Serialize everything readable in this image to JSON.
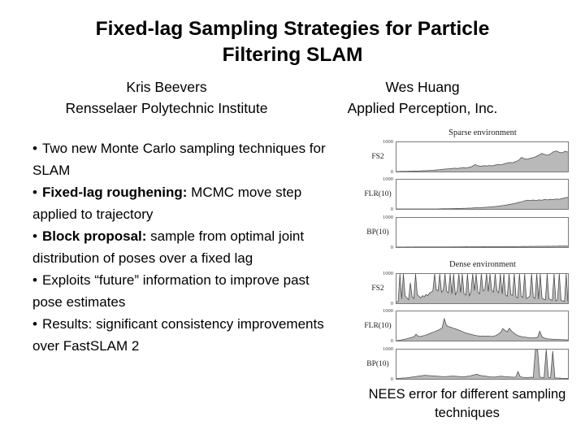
{
  "title": {
    "line1": "Fixed-lag Sampling Strategies for Particle",
    "line2": "Filtering SLAM"
  },
  "authors": [
    {
      "name": "Kris Beevers",
      "affiliation": "Rensselaer Polytechnic Institute"
    },
    {
      "name": "Wes Huang",
      "affiliation": "Applied Perception, Inc."
    }
  ],
  "bullets": [
    {
      "marker": "•",
      "bold": "",
      "text": "Two new Monte Carlo sampling techniques for SLAM"
    },
    {
      "marker": "•",
      "bold": "Fixed-lag roughening:",
      "text": " MCMC move step applied to trajectory"
    },
    {
      "marker": "•",
      "bold": "Block proposal:",
      "text": " sample from optimal joint distribution of poses over a fixed lag"
    },
    {
      "marker": "•",
      "bold": "",
      "text": "Exploits “future” information to improve past pose estimates"
    },
    {
      "marker": "•",
      "bold": "",
      "text": "Results: significant consistency improvements over FastSLAM 2"
    }
  ],
  "caption": "NEES error for different sampling techniques",
  "chart_data": {
    "type": "area",
    "title": "NEES error for different sampling techniques",
    "xlabel": "",
    "ylabel": "",
    "ylim": [
      0,
      1000
    ],
    "yticks": [
      "1000",
      "0"
    ],
    "grid": false,
    "legend": "none",
    "fill_color": "#b9b9b9",
    "line_color": "#4d4d4d",
    "frame_color": "#7a7a7a",
    "groups": [
      {
        "title": "Sparse environment",
        "series": [
          {
            "name": "FS2",
            "values": [
              0,
              2,
              4,
              6,
              9,
              12,
              15,
              18,
              22,
              26,
              30,
              35,
              40,
              46,
              55,
              65,
              75,
              88,
              95,
              105,
              115,
              105,
              120,
              135,
              125,
              145,
              170,
              240,
              200,
              180,
              200,
              190,
              205,
              195,
              220,
              240,
              230,
              260,
              290,
              310,
              300,
              340,
              380,
              480,
              440,
              420,
              450,
              470,
              510,
              560,
              620,
              580,
              560,
              600,
              680,
              700,
              660,
              640,
              690,
              665
            ]
          },
          {
            "name": "FLR(10)",
            "values": [
              0,
              0,
              0,
              0,
              0,
              0,
              0,
              0,
              0,
              0,
              0,
              0,
              0,
              0,
              0,
              3,
              5,
              7,
              9,
              11,
              13,
              15,
              18,
              21,
              24,
              28,
              32,
              36,
              41,
              46,
              52,
              58,
              66,
              74,
              84,
              95,
              108,
              122,
              138,
              155,
              175,
              196,
              220,
              246,
              275,
              300,
              285,
              305,
              290,
              310,
              300,
              320,
              310,
              330,
              320,
              340,
              330,
              355,
              380,
              400
            ]
          },
          {
            "name": "BP(10)",
            "values": [
              2,
              2,
              3,
              3,
              4,
              3,
              4,
              5,
              4,
              5,
              6,
              5,
              6,
              7,
              6,
              7,
              8,
              7,
              9,
              8,
              10,
              9,
              11,
              10,
              12,
              11,
              13,
              12,
              14,
              13,
              15,
              14,
              16,
              15,
              17,
              16,
              18,
              17,
              19,
              18,
              20,
              19,
              22,
              21,
              24,
              22,
              26,
              24,
              28,
              26,
              30,
              28,
              32,
              30,
              34,
              31,
              36,
              33,
              38,
              35
            ]
          }
        ]
      },
      {
        "title": "Dense environment",
        "series": [
          {
            "name": "FS2",
            "values": [
              30,
              80,
              1000,
              150,
              1000,
              250,
              180,
              120,
              700,
              220,
              160,
              1000,
              300,
              240,
              180,
              260,
              220,
              300,
              260,
              340,
              380,
              420,
              1000,
              460,
              420,
              1000,
              380,
              440,
              1000,
              400,
              360,
              1000,
              320,
              1000,
              280,
              420,
              1000,
              360,
              1000,
              320,
              280,
              1000,
              240,
              380,
              1000,
              440,
              1000,
              380,
              320,
              1000,
              420,
              460,
              1000,
              400,
              1000,
              440,
              380,
              1000,
              420,
              360,
              1000,
              320,
              1000,
              280,
              240,
              1000,
              300,
              260,
              1000,
              220,
              180,
              1000,
              240,
              200,
              1000,
              160,
              200,
              240,
              1000,
              200,
              160,
              1000,
              140,
              1000,
              180,
              140,
              120,
              1000,
              160,
              120,
              100,
              1000,
              80,
              120,
              1000,
              100,
              80,
              60,
              1000,
              50
            ]
          },
          {
            "name": "FLR(10)",
            "values": [
              0,
              10,
              20,
              35,
              50,
              70,
              90,
              110,
              130,
              220,
              150,
              140,
              160,
              180,
              200,
              230,
              260,
              290,
              320,
              350,
              390,
              430,
              750,
              520,
              480,
              460,
              430,
              410,
              380,
              350,
              320,
              290,
              260,
              240,
              220,
              200,
              185,
              170,
              160,
              150,
              155,
              145,
              160,
              150,
              140,
              160,
              180,
              230,
              280,
              410,
              350,
              300,
              420,
              330,
              260,
              210,
              170,
              150,
              130,
              120,
              110,
              100,
              95,
              90,
              100,
              110,
              320,
              140,
              90,
              70,
              60,
              55,
              50,
              45,
              40,
              38,
              35,
              32,
              30,
              28
            ]
          },
          {
            "name": "BP(10)",
            "values": [
              10,
              15,
              20,
              25,
              30,
              40,
              50,
              60,
              70,
              80,
              90,
              100,
              110,
              120,
              115,
              110,
              105,
              100,
              95,
              90,
              85,
              80,
              75,
              80,
              85,
              90,
              95,
              90,
              85,
              80,
              75,
              70,
              80,
              90,
              100,
              120,
              140,
              160,
              130,
              110,
              100,
              90,
              80,
              70,
              65,
              60,
              70,
              80,
              90,
              85,
              75,
              70,
              65,
              60,
              55,
              60,
              250,
              70,
              55,
              50,
              45,
              50,
              55,
              45,
              1000,
              1000,
              60,
              50,
              40,
              1000,
              45,
              40,
              950,
              35,
              30,
              25,
              20,
              18,
              15,
              12
            ]
          }
        ]
      }
    ]
  }
}
